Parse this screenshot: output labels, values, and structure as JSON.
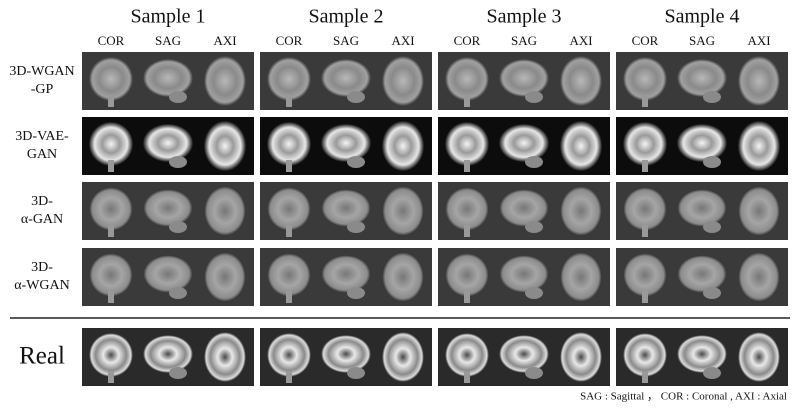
{
  "columns": [
    {
      "title": "Sample 1",
      "views": [
        "COR",
        "SAG",
        "AXI"
      ]
    },
    {
      "title": "Sample 2",
      "views": [
        "COR",
        "SAG",
        "AXI"
      ]
    },
    {
      "title": "Sample 3",
      "views": [
        "COR",
        "SAG",
        "AXI"
      ]
    },
    {
      "title": "Sample 4",
      "views": [
        "COR",
        "SAG",
        "AXI"
      ]
    }
  ],
  "rows": [
    {
      "label": [
        "3D-WGAN",
        "-GP"
      ]
    },
    {
      "label": [
        "3D-VAE-",
        "GAN"
      ]
    },
    {
      "label": [
        "3D-",
        "α-GAN"
      ]
    },
    {
      "label": [
        "3D-",
        "α-WGAN"
      ]
    }
  ],
  "real_row": {
    "label": "Real"
  },
  "footnote": "SAG : Sagittal ， COR : Coronal , AXI : Axial"
}
